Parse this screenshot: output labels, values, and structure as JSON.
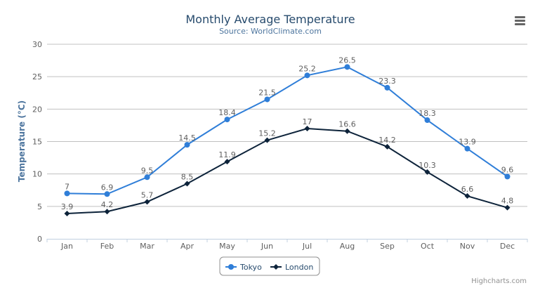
{
  "chart_data": {
    "type": "line",
    "title": "Monthly Average Temperature",
    "subtitle": "Source: WorldClimate.com",
    "xlabel": "",
    "ylabel": "Temperature (°C)",
    "ylim": [
      0,
      30
    ],
    "yticks": [
      0,
      5,
      10,
      15,
      20,
      25,
      30
    ],
    "grid": true,
    "legend": "bottom-center",
    "categories": [
      "Jan",
      "Feb",
      "Mar",
      "Apr",
      "May",
      "Jun",
      "Jul",
      "Aug",
      "Sep",
      "Oct",
      "Nov",
      "Dec"
    ],
    "series": [
      {
        "name": "Tokyo",
        "color": "#2f7ed8",
        "marker": "circle",
        "values": [
          7.0,
          6.9,
          9.5,
          14.5,
          18.4,
          21.5,
          25.2,
          26.5,
          23.3,
          18.3,
          13.9,
          9.6
        ]
      },
      {
        "name": "London",
        "color": "#0d233a",
        "marker": "diamond",
        "values": [
          3.9,
          4.2,
          5.7,
          8.5,
          11.9,
          15.2,
          17.0,
          16.6,
          14.2,
          10.3,
          6.6,
          4.8
        ]
      }
    ]
  },
  "credits": "Highcharts.com",
  "menu_icon": "hamburger-menu-icon"
}
